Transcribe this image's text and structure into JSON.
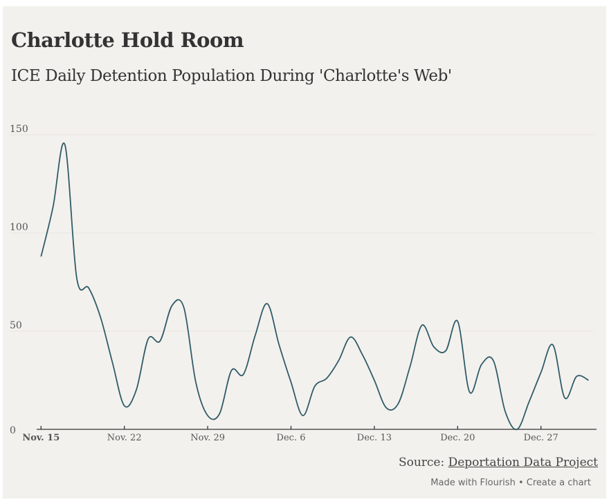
{
  "title": "Charlotte Hold Room",
  "subtitle": "ICE Daily Detention Population During 'Charlotte's Web'",
  "footer": {
    "source_label": "Source:",
    "source_link": "Deportation Data Project",
    "made_with": "Made with Flourish",
    "separator": "•",
    "create": "Create a chart"
  },
  "chart_data": {
    "type": "line",
    "title": "Charlotte Hold Room",
    "xlabel": "",
    "ylabel": "",
    "ylim": [
      0,
      150
    ],
    "yticks": [
      "0",
      "50",
      "100",
      "150"
    ],
    "ytick_values": [
      0,
      50,
      100,
      150
    ],
    "xticks": [
      {
        "label": "Nov. 15",
        "day": 0,
        "bold": true
      },
      {
        "label": "Nov. 22",
        "day": 7
      },
      {
        "label": "Nov. 29",
        "day": 14
      },
      {
        "label": "Dec. 6",
        "day": 21
      },
      {
        "label": "Dec. 13",
        "day": 28
      },
      {
        "label": "Dec. 20",
        "day": 35
      },
      {
        "label": "Dec. 27",
        "day": 42
      }
    ],
    "x_start": "Nov. 15",
    "x_end": "Dec. 31",
    "grid": true,
    "line_color": "#2f5b68",
    "series": [
      {
        "name": "Daily detention population",
        "values": [
          88,
          113,
          145,
          77,
          72,
          57,
          34,
          12,
          20,
          46,
          45,
          63,
          62,
          24,
          7,
          8,
          30,
          28,
          48,
          64,
          43,
          24,
          7,
          22,
          26,
          35,
          47,
          38,
          25,
          11,
          13,
          32,
          53,
          42,
          40,
          55,
          19,
          33,
          35,
          9,
          0,
          14,
          29,
          43,
          16,
          27,
          25
        ]
      }
    ]
  }
}
